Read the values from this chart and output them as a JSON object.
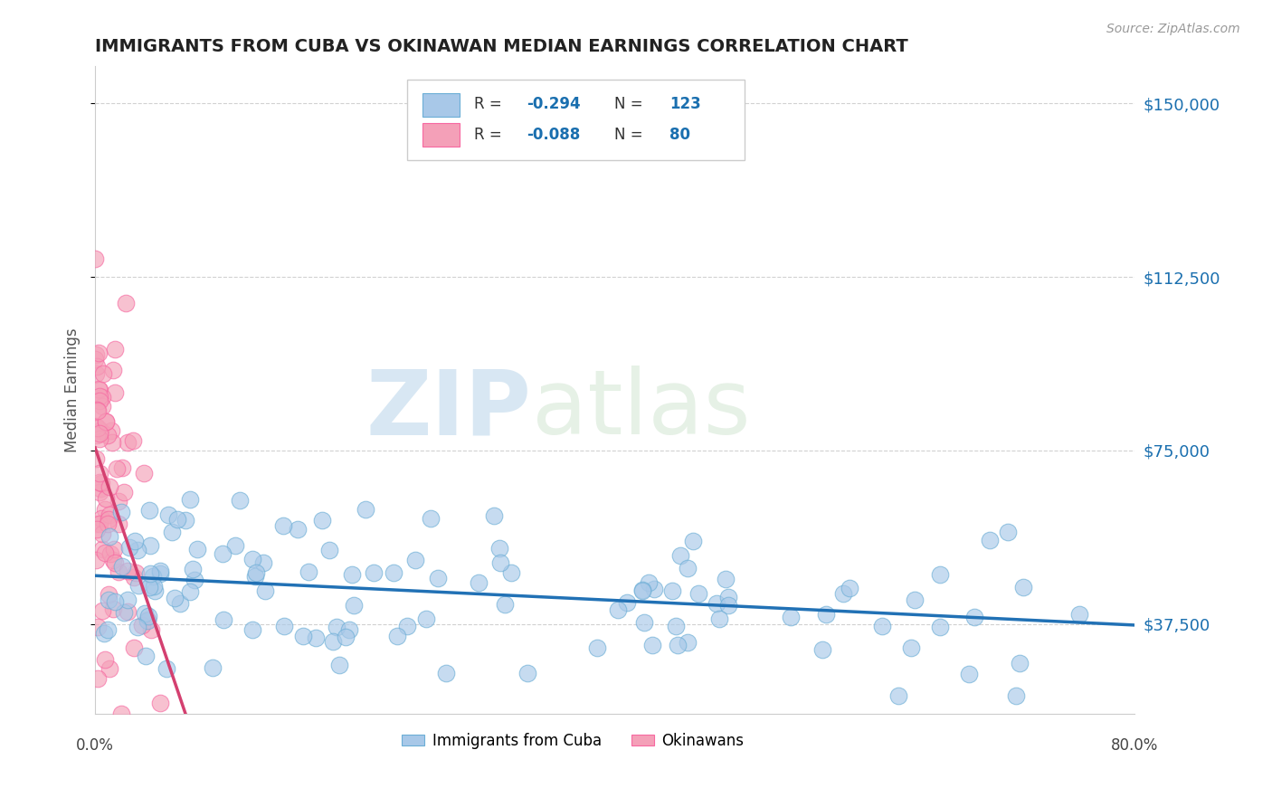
{
  "title": "IMMIGRANTS FROM CUBA VS OKINAWAN MEDIAN EARNINGS CORRELATION CHART",
  "source": "Source: ZipAtlas.com",
  "ylabel": "Median Earnings",
  "yticks": [
    37500,
    75000,
    112500,
    150000
  ],
  "ytick_labels": [
    "$37,500",
    "$75,000",
    "$112,500",
    "$150,000"
  ],
  "xmin": 0.0,
  "xmax": 80.0,
  "ymin": 18000,
  "ymax": 158000,
  "blue_R": -0.294,
  "blue_N": 123,
  "pink_R": -0.088,
  "pink_N": 80,
  "blue_color": "#a8c8e8",
  "pink_color": "#f4a0b8",
  "blue_edge_color": "#6baed6",
  "pink_edge_color": "#f768a1",
  "blue_line_color": "#2171b5",
  "pink_line_color": "#d44070",
  "watermark_zip": "ZIP",
  "watermark_atlas": "atlas",
  "legend_label_blue": "Immigrants from Cuba",
  "legend_label_pink": "Okinawans",
  "background_color": "#ffffff",
  "grid_color": "#cccccc",
  "title_color": "#222222",
  "axis_label_color": "#555555",
  "ytick_color": "#1a6faf",
  "legend_r_color": "#1a6faf",
  "legend_n_color": "#1a6faf",
  "seed_blue": 7,
  "seed_pink": 13
}
